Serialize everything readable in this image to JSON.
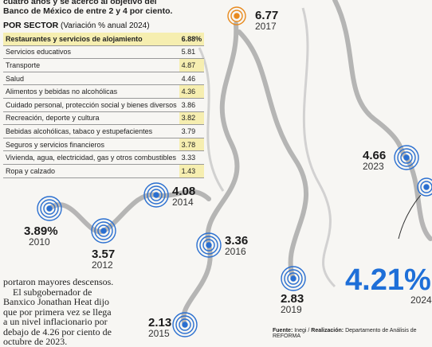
{
  "intro": [
    "cuatro años y se acercó al objetivo del",
    "Banco de México de entre 2 y 4 por ciento."
  ],
  "table": {
    "title": "POR SECTOR",
    "subtitle": "(Variación % anual 2024)",
    "rows": [
      [
        "Restaurantes y servicios de alojamiento",
        "6.88%"
      ],
      [
        "Servicios educativos",
        "5.81"
      ],
      [
        "Transporte",
        "4.87"
      ],
      [
        "Salud",
        "4.46"
      ],
      [
        "Alimentos y bebidas no alcohólicas",
        "4.36"
      ],
      [
        "Cuidado personal, protección social y bienes diversos",
        "3.86"
      ],
      [
        "Recreación, deporte y cultura",
        "3.82"
      ],
      [
        "Bebidas alcohólicas, tabaco y estupefacientes",
        "3.79"
      ],
      [
        "Seguros y servicios financieros",
        "3.78"
      ],
      [
        "Vivienda, agua, electricidad, gas y otros combustibles",
        "3.33"
      ],
      [
        "Ropa y calzado",
        "1.43"
      ]
    ]
  },
  "points": [
    {
      "value": "6.77",
      "year": "2017"
    },
    {
      "value": "4.66",
      "year": "2023"
    },
    {
      "value": "4.08",
      "year": "2014"
    },
    {
      "value": "3.89%",
      "year": "2010"
    },
    {
      "value": "3.57",
      "year": "2012"
    },
    {
      "value": "3.36",
      "year": "2016"
    },
    {
      "value": "2.83",
      "year": "2019"
    },
    {
      "value": "2.13",
      "year": "2015"
    },
    {
      "value": "4.21%",
      "year": "2024"
    }
  ],
  "body": [
    "portaron mayores descensos.",
    "El subgobernador de",
    "Banxico Jonathan Heat dijo",
    "que por primera vez se llega",
    "a un nivel inflacionario por",
    "debajo de 4.26 por ciento de",
    "octubre de 2023."
  ],
  "source": {
    "label": "Fuente:",
    "text": "Inegi /",
    "label2": "Realización:",
    "text2": "Departamento de Análisis de REFORMA"
  }
}
